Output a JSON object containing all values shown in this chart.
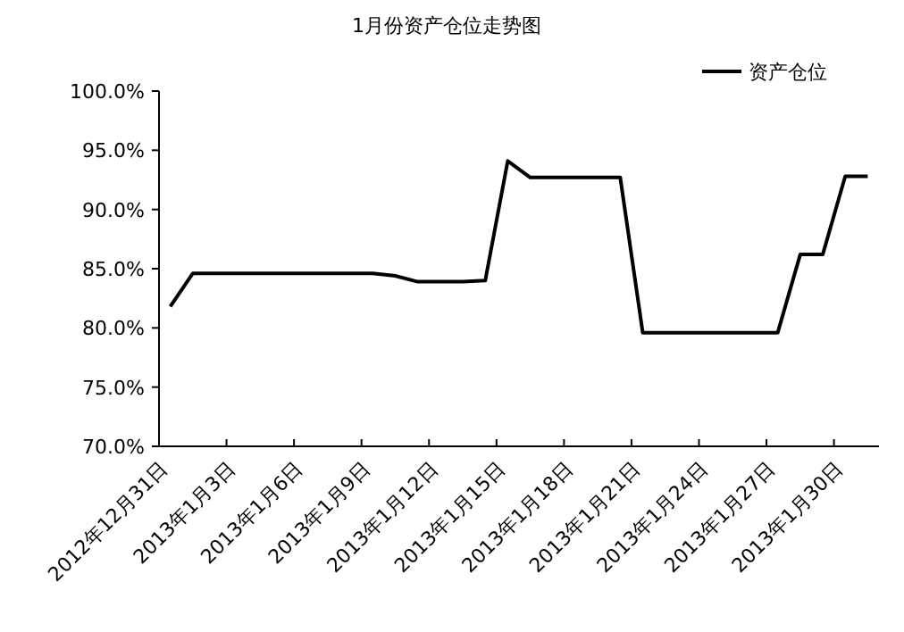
{
  "chart_data": {
    "type": "line",
    "title": "1月份资产仓位走势图",
    "x": [
      "2012-12-31T12:00",
      "2013-01-01T12:00",
      "2013-01-02T12:00",
      "2013-01-03T12:00",
      "2013-01-04T12:00",
      "2013-01-05T12:00",
      "2013-01-06T12:00",
      "2013-01-07T12:00",
      "2013-01-08T12:00",
      "2013-01-09T12:00",
      "2013-01-10T12:00",
      "2013-01-11T12:00",
      "2013-01-12T12:00",
      "2013-01-13T12:00",
      "2013-01-14T12:00",
      "2013-01-15T12:00",
      "2013-01-16T12:00",
      "2013-01-17T12:00",
      "2013-01-18T12:00",
      "2013-01-19T12:00",
      "2013-01-20T12:00",
      "2013-01-21T12:00",
      "2013-01-22T12:00",
      "2013-01-23T12:00",
      "2013-01-24T12:00",
      "2013-01-25T12:00",
      "2013-01-26T12:00",
      "2013-01-27T12:00",
      "2013-01-28T12:00",
      "2013-01-29T12:00",
      "2013-01-30T12:00",
      "2013-01-31T12:00"
    ],
    "series": [
      {
        "name": "资产仓位",
        "color": "#000000",
        "values": [
          81.8,
          84.6,
          84.6,
          84.6,
          84.6,
          84.6,
          84.6,
          84.6,
          84.6,
          84.6,
          84.4,
          83.9,
          83.9,
          83.9,
          84.0,
          94.1,
          92.7,
          92.7,
          92.7,
          92.7,
          92.7,
          79.6,
          79.6,
          79.6,
          79.6,
          79.6,
          79.6,
          79.6,
          86.2,
          86.2,
          92.8,
          92.8
        ]
      }
    ],
    "xlim": [
      "2012-12-31",
      "2013-02-01"
    ],
    "xticks": [
      {
        "value": "2012-12-31",
        "label": "2012年12月31日"
      },
      {
        "value": "2013-01-03",
        "label": "2013年1月3日"
      },
      {
        "value": "2013-01-06",
        "label": "2013年1月6日"
      },
      {
        "value": "2013-01-09",
        "label": "2013年1月9日"
      },
      {
        "value": "2013-01-12",
        "label": "2013年1月12日"
      },
      {
        "value": "2013-01-15",
        "label": "2013年1月15日"
      },
      {
        "value": "2013-01-18",
        "label": "2013年1月18日"
      },
      {
        "value": "2013-01-21",
        "label": "2013年1月21日"
      },
      {
        "value": "2013-01-24",
        "label": "2013年1月24日"
      },
      {
        "value": "2013-01-27",
        "label": "2013年1月27日"
      },
      {
        "value": "2013-01-30",
        "label": "2013年1月30日"
      }
    ],
    "ylim": [
      70,
      100
    ],
    "yticks": [
      {
        "value": 70,
        "label": "70.0%"
      },
      {
        "value": 75,
        "label": "75.0%"
      },
      {
        "value": 80,
        "label": "80.0%"
      },
      {
        "value": 85,
        "label": "85.0%"
      },
      {
        "value": 90,
        "label": "90.0%"
      },
      {
        "value": 95,
        "label": "95.0%"
      },
      {
        "value": 100,
        "label": "100.0%"
      }
    ],
    "legend": "top right",
    "grid": false,
    "marker": "none",
    "line_style": "solid"
  }
}
